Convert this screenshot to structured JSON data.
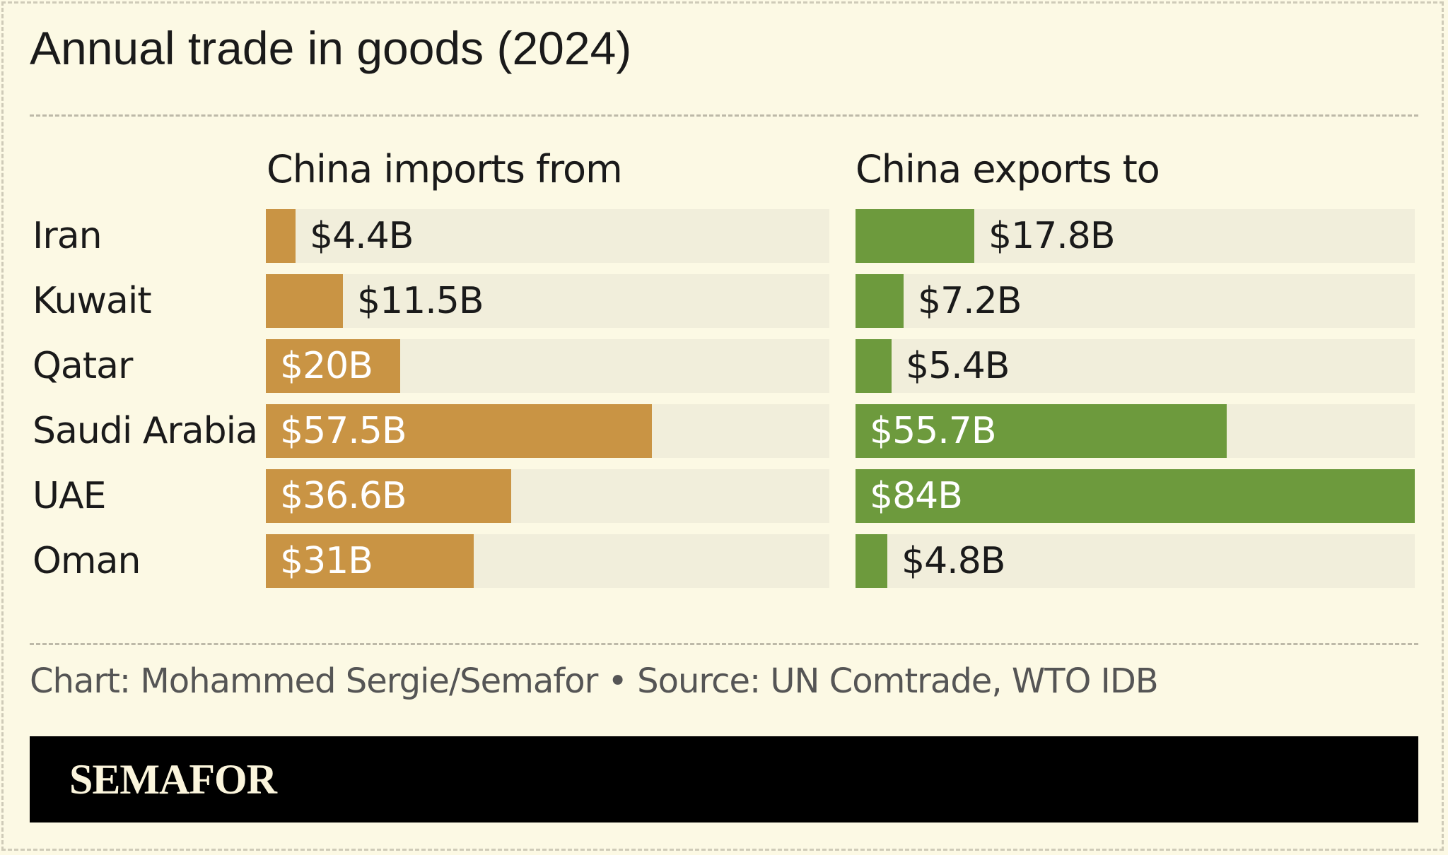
{
  "chart_data": {
    "type": "bar",
    "orientation": "horizontal",
    "title": "Annual trade in goods (2024)",
    "categories": [
      "Iran",
      "Kuwait",
      "Qatar",
      "Saudi Arabia",
      "UAE",
      "Oman"
    ],
    "panels": [
      {
        "title": "China imports from",
        "values": [
          4.4,
          11.5,
          20,
          57.5,
          36.6,
          31
        ],
        "labels": [
          "$4.4B",
          "$11.5B",
          "$20B",
          "$57.5B",
          "$36.6B",
          "$31B"
        ],
        "xlim": [
          0,
          84
        ],
        "color": "#c99444"
      },
      {
        "title": "China exports to",
        "values": [
          17.8,
          7.2,
          5.4,
          55.7,
          84,
          4.8
        ],
        "labels": [
          "$17.8B",
          "$7.2B",
          "$5.4B",
          "$55.7B",
          "$84B",
          "$4.8B"
        ],
        "xlim": [
          0,
          84
        ],
        "color": "#6d9a3d"
      }
    ],
    "grid": false,
    "legend": "none"
  },
  "credit": "Chart: Mohammed Sergie/Semafor • Source: UN Comtrade, WTO IDB",
  "brand": "SEMAFOR",
  "colors": {
    "background": "#fcf9e4",
    "track": "#f1eedb",
    "imports": "#c99444",
    "exports": "#6d9a3d",
    "footer": "#000000"
  }
}
